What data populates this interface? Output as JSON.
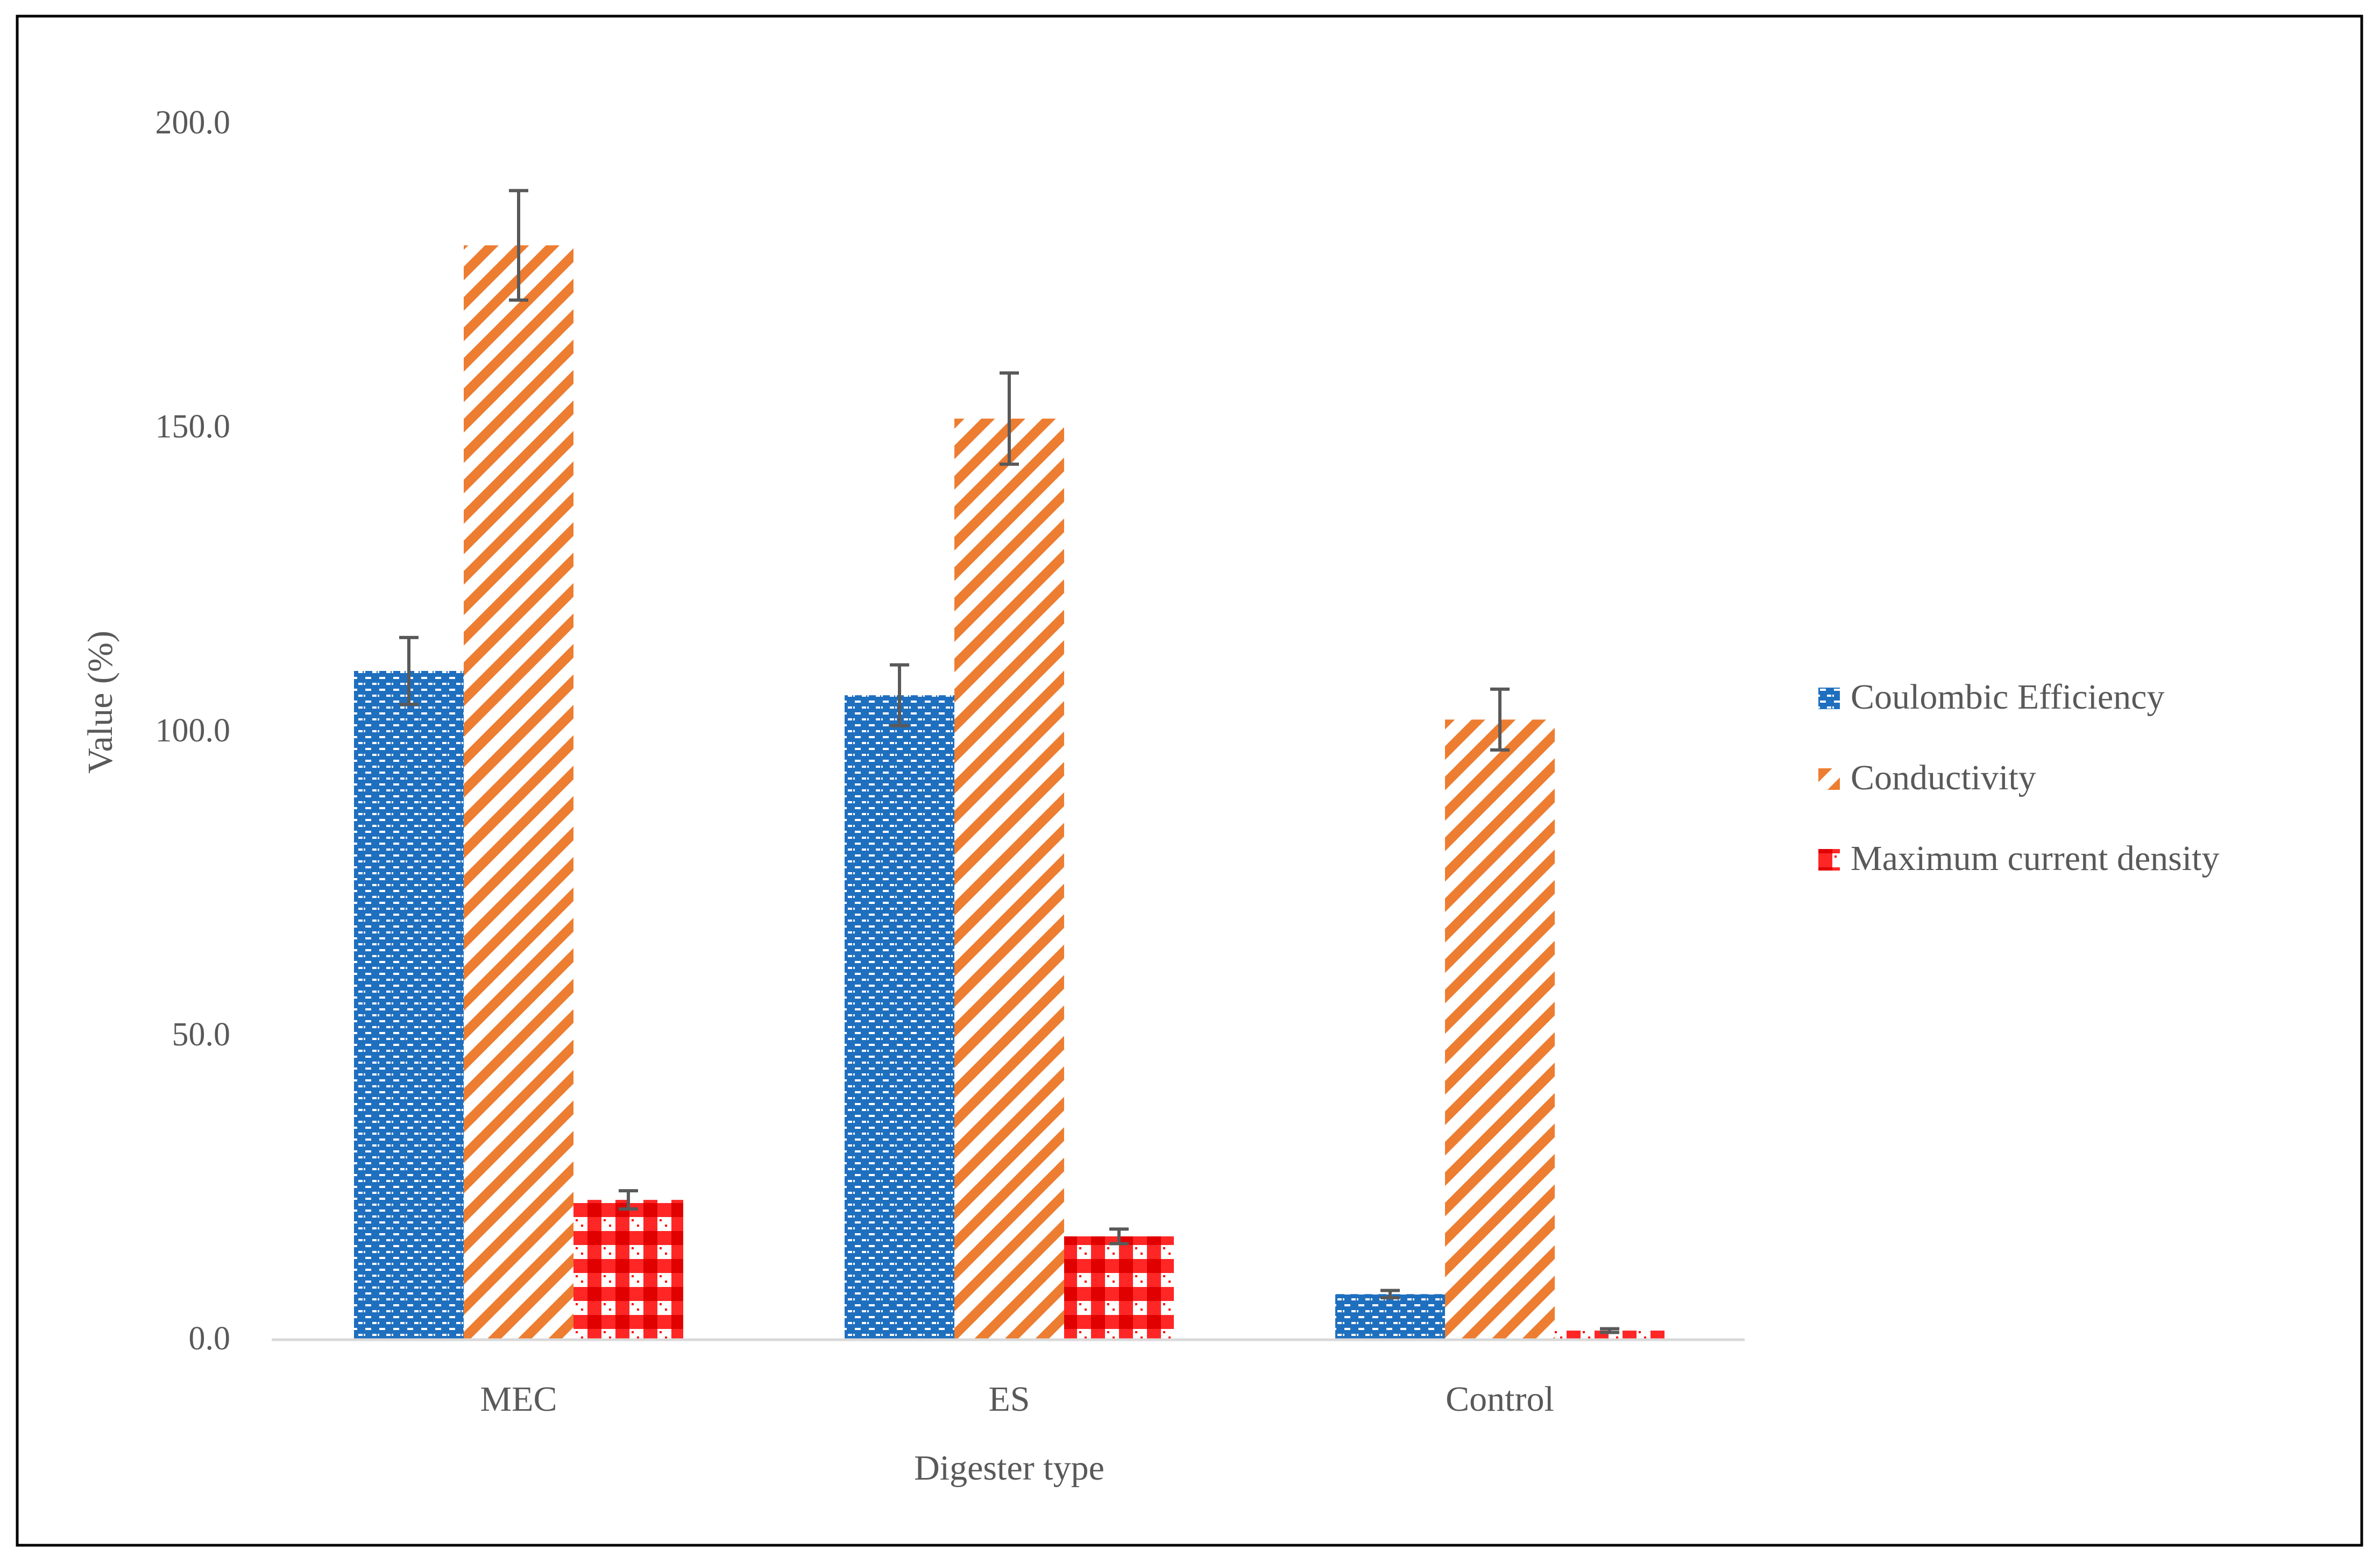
{
  "chart_data": {
    "type": "bar",
    "xlabel": "Digester type",
    "ylabel": "Value (%)",
    "ylim": [
      0,
      200
    ],
    "yticks": [
      "0.0",
      "50.0",
      "100.0",
      "150.0",
      "200.0"
    ],
    "ytick_values": [
      0,
      50,
      100,
      150,
      200
    ],
    "grid": false,
    "legend_position": "right",
    "categories": [
      "MEC",
      "ES",
      "Control"
    ],
    "series": [
      {
        "name": "Coulombic Efficiency",
        "color": "#1f6fbf",
        "pattern": "brick-dots",
        "values": [
          110,
          106,
          7.5
        ],
        "errors": [
          5.5,
          5.0,
          0.6
        ]
      },
      {
        "name": "Conductivity",
        "color": "#ed7d31",
        "pattern": "diagonal-stripes",
        "values": [
          180,
          151.5,
          102
        ],
        "errors": [
          9.0,
          7.5,
          5.0
        ]
      },
      {
        "name": "Maximum current density",
        "color": "#ff0000",
        "pattern": "checker",
        "values": [
          23,
          17,
          1.5
        ],
        "errors": [
          1.5,
          1.2,
          0.3
        ]
      }
    ]
  }
}
